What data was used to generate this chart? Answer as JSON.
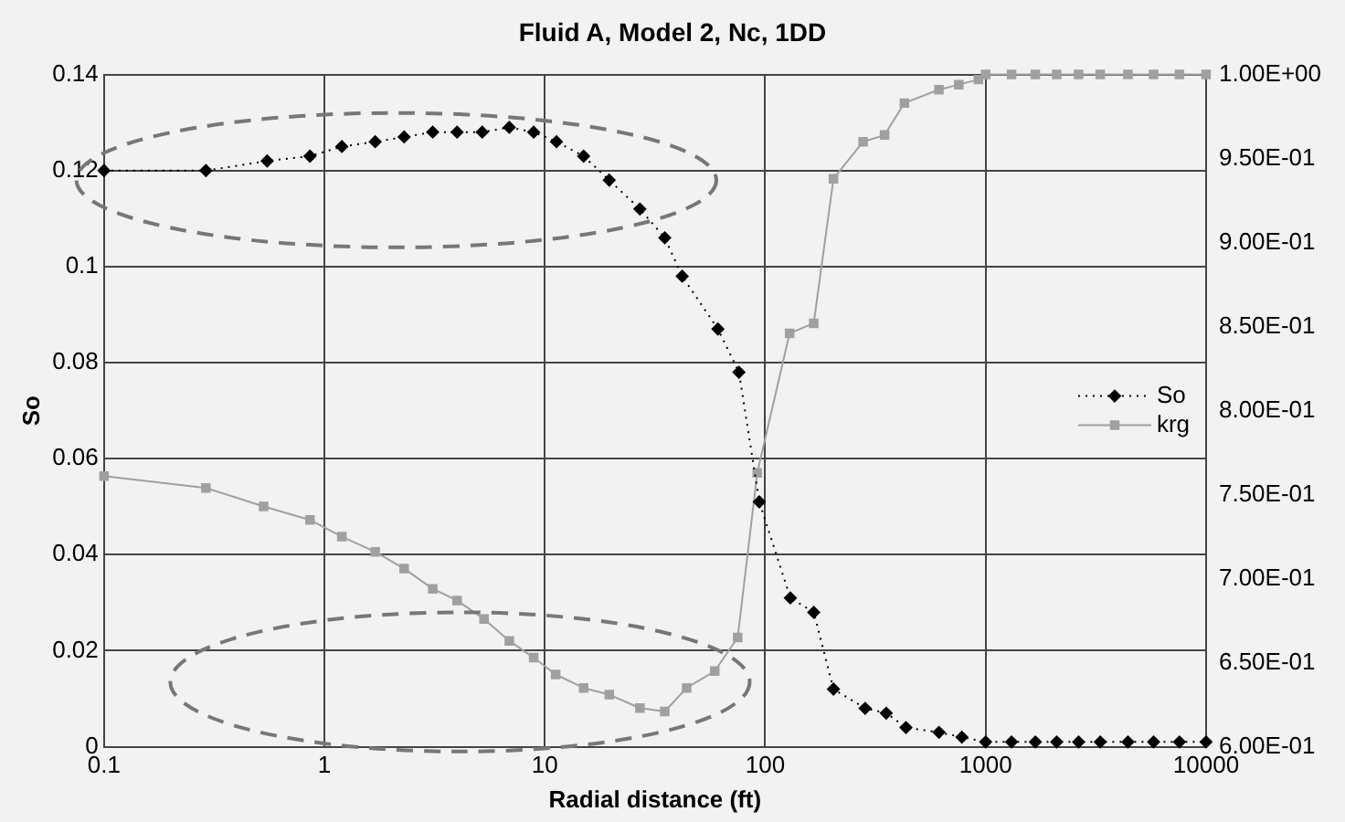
{
  "chart_data": {
    "type": "line",
    "title": "Fluid A, Model 2, Nc, 1DD",
    "xlabel": "Radial distance (ft)",
    "ylabel": "So",
    "log": "x",
    "grid": true,
    "legend": "right",
    "xlim": [
      0.1,
      10000
    ],
    "xticks": [
      0.1,
      1,
      10,
      100,
      1000,
      10000
    ],
    "ylim": [
      0,
      0.14
    ],
    "yticks": [
      0,
      0.02,
      0.04,
      0.06,
      0.08,
      0.1,
      0.12,
      0.14
    ],
    "y2lim": [
      0.6,
      1
    ],
    "y2ticks": [
      {
        "value": 0.6,
        "label": "6.00E-01"
      },
      {
        "value": 0.65,
        "label": "6.50E-01"
      },
      {
        "value": 0.7,
        "label": "7.00E-01"
      },
      {
        "value": 0.75,
        "label": "7.50E-01"
      },
      {
        "value": 0.8,
        "label": "8.00E-01"
      },
      {
        "value": 0.85,
        "label": "8.50E-01"
      },
      {
        "value": 0.9,
        "label": "9.00E-01"
      },
      {
        "value": 0.95,
        "label": "9.50E-01"
      },
      {
        "value": 1,
        "label": "1.00E+00"
      }
    ],
    "series": [
      {
        "name": "So",
        "color": "#000000",
        "marker": "diamond",
        "line_style": "dotted",
        "x": [
          0.1,
          0.29,
          0.55,
          0.86,
          1.2,
          1.7,
          2.3,
          3.1,
          4,
          5.2,
          6.9,
          8.9,
          11.3,
          15,
          19.6,
          27,
          35,
          42,
          61,
          76,
          94,
          130,
          166,
          204,
          284,
          354,
          435,
          614,
          780,
          1000,
          1310,
          1680,
          2100,
          2640,
          3310,
          4420,
          5780,
          7570,
          10000
        ],
        "values": [
          0.12,
          0.12,
          0.122,
          0.123,
          0.125,
          0.126,
          0.127,
          0.128,
          0.128,
          0.128,
          0.129,
          0.128,
          0.126,
          0.123,
          0.118,
          0.112,
          0.106,
          0.098,
          0.087,
          0.078,
          0.051,
          0.031,
          0.028,
          0.012,
          0.008,
          0.007,
          0.004,
          0.003,
          0.002,
          0.001,
          0.001,
          0.001,
          0.001,
          0.001,
          0.001,
          0.001,
          0.001,
          0.001,
          0.001
        ]
      },
      {
        "name": "krg",
        "color": "#a0a0a0",
        "marker": "square",
        "line_style": "solid",
        "axis": "y2",
        "x": [
          0.1,
          0.29,
          0.53,
          0.86,
          1.2,
          1.7,
          2.3,
          3.1,
          4,
          5.3,
          6.9,
          8.9,
          11.2,
          15,
          19.6,
          27,
          35,
          44,
          59,
          75,
          92,
          129,
          166,
          204,
          278,
          348,
          428,
          614,
          755,
          927,
          1000,
          1310,
          1680,
          2100,
          2640,
          3310,
          4420,
          5780,
          7570,
          10000
        ],
        "values": [
          0.761,
          0.754,
          0.743,
          0.735,
          0.725,
          0.716,
          0.706,
          0.694,
          0.687,
          0.676,
          0.663,
          0.653,
          0.643,
          0.635,
          0.631,
          0.623,
          0.621,
          0.635,
          0.645,
          0.665,
          0.763,
          0.846,
          0.852,
          0.938,
          0.96,
          0.964,
          0.983,
          0.991,
          0.994,
          0.997,
          1,
          1,
          1,
          1,
          1,
          1,
          1,
          1,
          1,
          1
        ]
      }
    ]
  }
}
